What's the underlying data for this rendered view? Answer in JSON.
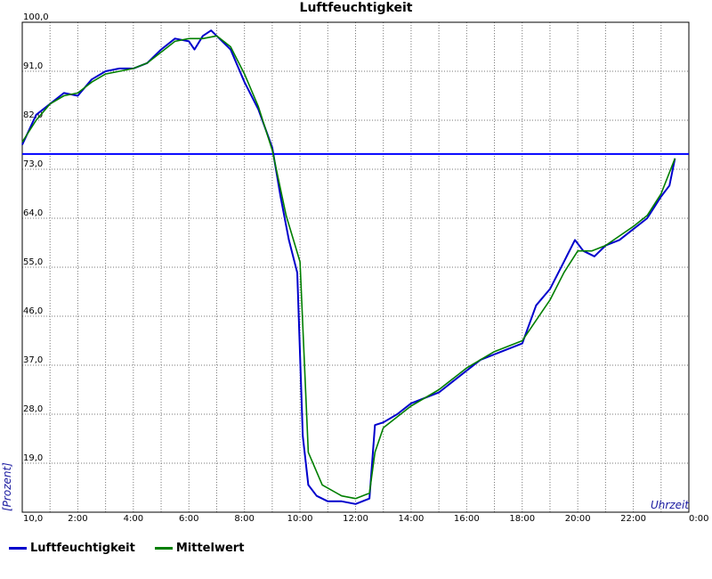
{
  "chart_data": {
    "type": "line",
    "title": "Luftfeuchtigkeit",
    "ylabel": "[Prozent]",
    "xlabel": "Uhrzeit",
    "ylim": [
      10,
      100
    ],
    "xlim_hours": [
      0,
      24
    ],
    "y_ticks": [
      "10,0",
      "19,0",
      "28,0",
      "37,0",
      "46,0",
      "55,0",
      "64,0",
      "73,0",
      "82,0",
      "91,0",
      "100,0"
    ],
    "x_ticks": [
      "2:00",
      "4:00",
      "6:00",
      "8:00",
      "10:00",
      "12:00",
      "14:00",
      "16:00",
      "18:00",
      "20:00",
      "22:00",
      "0:00"
    ],
    "grid": true,
    "reference_line": {
      "value": 75.8,
      "color": "#0000ff"
    },
    "series": [
      {
        "name": "Luftfeuchtigkeit",
        "color": "#0000cc",
        "x": [
          0,
          0.5,
          1,
          1.5,
          2,
          2.5,
          3,
          3.5,
          4,
          4.5,
          5,
          5.5,
          6,
          6.2,
          6.5,
          6.8,
          7,
          7.5,
          8,
          8.5,
          9,
          9.3,
          9.6,
          9.9,
          10.1,
          10.3,
          10.6,
          11,
          11.5,
          12,
          12.5,
          12.7,
          13,
          13.5,
          14,
          14.5,
          15,
          15.5,
          16,
          16.5,
          17,
          17.5,
          18,
          18.5,
          19,
          19.5,
          19.9,
          20.2,
          20.6,
          21,
          21.5,
          22,
          22.5,
          23,
          23.3,
          23.5
        ],
        "values": [
          77.5,
          83,
          85,
          87,
          86.5,
          89.5,
          91,
          91.5,
          91.5,
          92.5,
          95,
          97,
          96.5,
          95,
          97.5,
          98.5,
          97.5,
          95,
          89,
          84,
          77,
          68,
          60,
          54,
          24,
          15,
          13,
          12,
          12,
          11.5,
          12.5,
          26,
          26.5,
          28,
          30,
          31,
          32,
          34,
          36,
          38,
          39,
          40,
          41,
          48,
          51,
          56,
          60,
          58,
          57,
          59,
          60,
          62,
          64,
          68,
          70,
          75
        ]
      },
      {
        "name": "Mittelwert",
        "color": "#007f00",
        "x": [
          0,
          0.5,
          1,
          1.5,
          2,
          2.5,
          3,
          3.5,
          4,
          4.5,
          5,
          5.5,
          6,
          6.5,
          7,
          7.5,
          8,
          8.5,
          9,
          9.5,
          10,
          10.3,
          10.8,
          11.5,
          12,
          12.5,
          12.7,
          13,
          14,
          15,
          16,
          17,
          18,
          19,
          19.5,
          20,
          20.5,
          21,
          22,
          22.5,
          23,
          23.5
        ],
        "values": [
          78,
          82,
          85,
          86.5,
          87,
          89,
          90.5,
          91,
          91.5,
          92.5,
          94.5,
          96.5,
          97,
          97,
          97.5,
          95.5,
          90.5,
          84.5,
          76.5,
          64.5,
          56,
          21,
          15,
          13,
          12.5,
          13.5,
          21,
          25.5,
          29.5,
          32.5,
          36.5,
          39.5,
          41.5,
          49,
          54,
          58,
          58,
          59,
          62.5,
          64.5,
          68.5,
          75
        ]
      }
    ]
  },
  "legend": {
    "items": [
      {
        "label": "Luftfeuchtigkeit",
        "color": "#0000cc"
      },
      {
        "label": "Mittelwert",
        "color": "#007f00"
      }
    ]
  }
}
